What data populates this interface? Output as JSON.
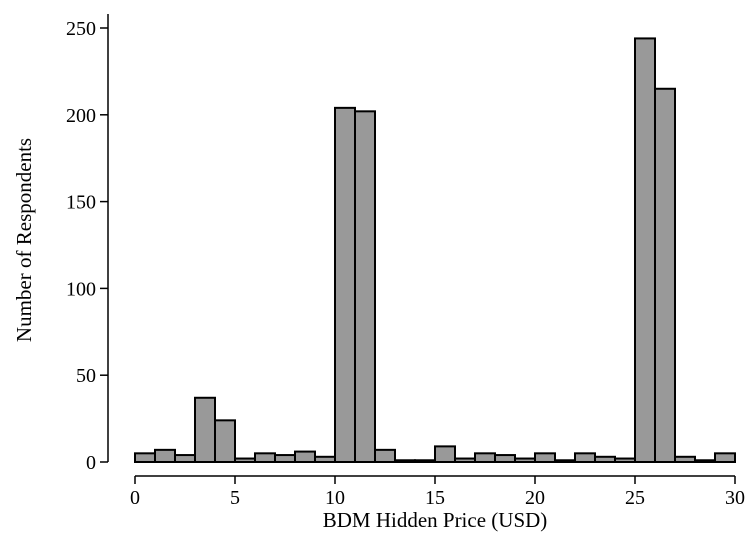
{
  "chart_data": {
    "type": "bar",
    "xlabel": "BDM Hidden Price (USD)",
    "ylabel": "Number of Respondents",
    "xlim": [
      0,
      30
    ],
    "ylim": [
      0,
      250
    ],
    "xticks": [
      "0",
      "5",
      "10",
      "15",
      "20",
      "25",
      "30"
    ],
    "yticks": [
      "0",
      "50",
      "100",
      "150",
      "200",
      "250"
    ],
    "bin_width": 1,
    "bins": [
      {
        "x": 0,
        "value": 5
      },
      {
        "x": 1,
        "value": 7
      },
      {
        "x": 2,
        "value": 4
      },
      {
        "x": 3,
        "value": 37
      },
      {
        "x": 4,
        "value": 24
      },
      {
        "x": 5,
        "value": 2
      },
      {
        "x": 6,
        "value": 5
      },
      {
        "x": 7,
        "value": 4
      },
      {
        "x": 8,
        "value": 6
      },
      {
        "x": 9,
        "value": 3
      },
      {
        "x": 10,
        "value": 204
      },
      {
        "x": 11,
        "value": 202
      },
      {
        "x": 12,
        "value": 7
      },
      {
        "x": 13,
        "value": 1
      },
      {
        "x": 14,
        "value": 1
      },
      {
        "x": 15,
        "value": 9
      },
      {
        "x": 16,
        "value": 2
      },
      {
        "x": 17,
        "value": 5
      },
      {
        "x": 18,
        "value": 4
      },
      {
        "x": 19,
        "value": 2
      },
      {
        "x": 20,
        "value": 5
      },
      {
        "x": 21,
        "value": 1
      },
      {
        "x": 22,
        "value": 5
      },
      {
        "x": 23,
        "value": 3
      },
      {
        "x": 24,
        "value": 2
      },
      {
        "x": 25,
        "value": 244
      },
      {
        "x": 26,
        "value": 215
      },
      {
        "x": 27,
        "value": 3
      },
      {
        "x": 28,
        "value": 1
      },
      {
        "x": 29,
        "value": 5
      }
    ],
    "grid": false,
    "legend": "none"
  }
}
